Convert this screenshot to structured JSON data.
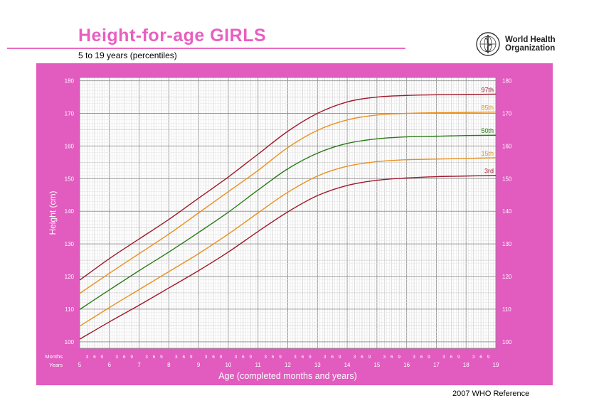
{
  "header": {
    "title": "Height-for-age  GIRLS",
    "subtitle": "5 to 19 years (percentiles)",
    "org_line1": "World Health",
    "org_line2": "Organization"
  },
  "footer": {
    "reference": "2007 WHO Reference"
  },
  "colors": {
    "panel": "#e25bbf",
    "plot_bg": "#ffffff",
    "grid": "#bbbbbb",
    "p97": "#a0192c",
    "p85": "#e8901f",
    "p50": "#2a7a18",
    "p15": "#e8901f",
    "p3": "#a0192c"
  },
  "chart_data": {
    "type": "line",
    "title": "Height-for-age  GIRLS",
    "subtitle": "5 to 19 years (percentiles)",
    "xlabel": "Age (completed months and years)",
    "ylabel": "Height (cm)",
    "xlim": [
      5,
      19
    ],
    "ylim": [
      98,
      181
    ],
    "y_ticks": [
      100,
      110,
      120,
      130,
      140,
      150,
      160,
      170,
      180
    ],
    "x_year_labels": [
      "5",
      "6",
      "7",
      "8",
      "9",
      "10",
      "11",
      "12",
      "13",
      "14",
      "15",
      "16",
      "17",
      "18",
      "19"
    ],
    "x_month_labels": [
      "3",
      "6",
      "9"
    ],
    "row_labels": {
      "months": "Months",
      "years": "Years"
    },
    "grid": true,
    "x": [
      5,
      6,
      7,
      8,
      9,
      10,
      11,
      12,
      13,
      14,
      15,
      16,
      17,
      18,
      19
    ],
    "series": [
      {
        "name": "97th",
        "color_key": "p97",
        "values": [
          118.9,
          125.5,
          131.5,
          137.5,
          144.0,
          150.5,
          157.5,
          164.5,
          170.0,
          173.5,
          175.0,
          175.5,
          175.7,
          175.8,
          175.9
        ]
      },
      {
        "name": "85th",
        "color_key": "p85",
        "values": [
          114.8,
          121.0,
          127.0,
          133.0,
          139.5,
          146.0,
          152.5,
          159.5,
          164.8,
          168.0,
          169.5,
          170.0,
          170.2,
          170.3,
          170.4
        ]
      },
      {
        "name": "50th",
        "color_key": "p50",
        "values": [
          109.9,
          115.9,
          121.8,
          127.5,
          133.5,
          139.7,
          146.5,
          153.0,
          157.8,
          160.8,
          162.2,
          162.8,
          163.0,
          163.2,
          163.3
        ]
      },
      {
        "name": "15th",
        "color_key": "p15",
        "values": [
          104.8,
          110.5,
          116.0,
          121.5,
          127.0,
          133.0,
          139.5,
          145.8,
          150.8,
          153.8,
          155.2,
          155.8,
          156.0,
          156.2,
          156.4
        ]
      },
      {
        "name": "3rd",
        "color_key": "p3",
        "values": [
          100.8,
          106.1,
          111.2,
          116.5,
          121.8,
          127.5,
          133.8,
          139.8,
          144.8,
          147.9,
          149.5,
          150.2,
          150.6,
          150.8,
          151.0
        ]
      }
    ]
  }
}
